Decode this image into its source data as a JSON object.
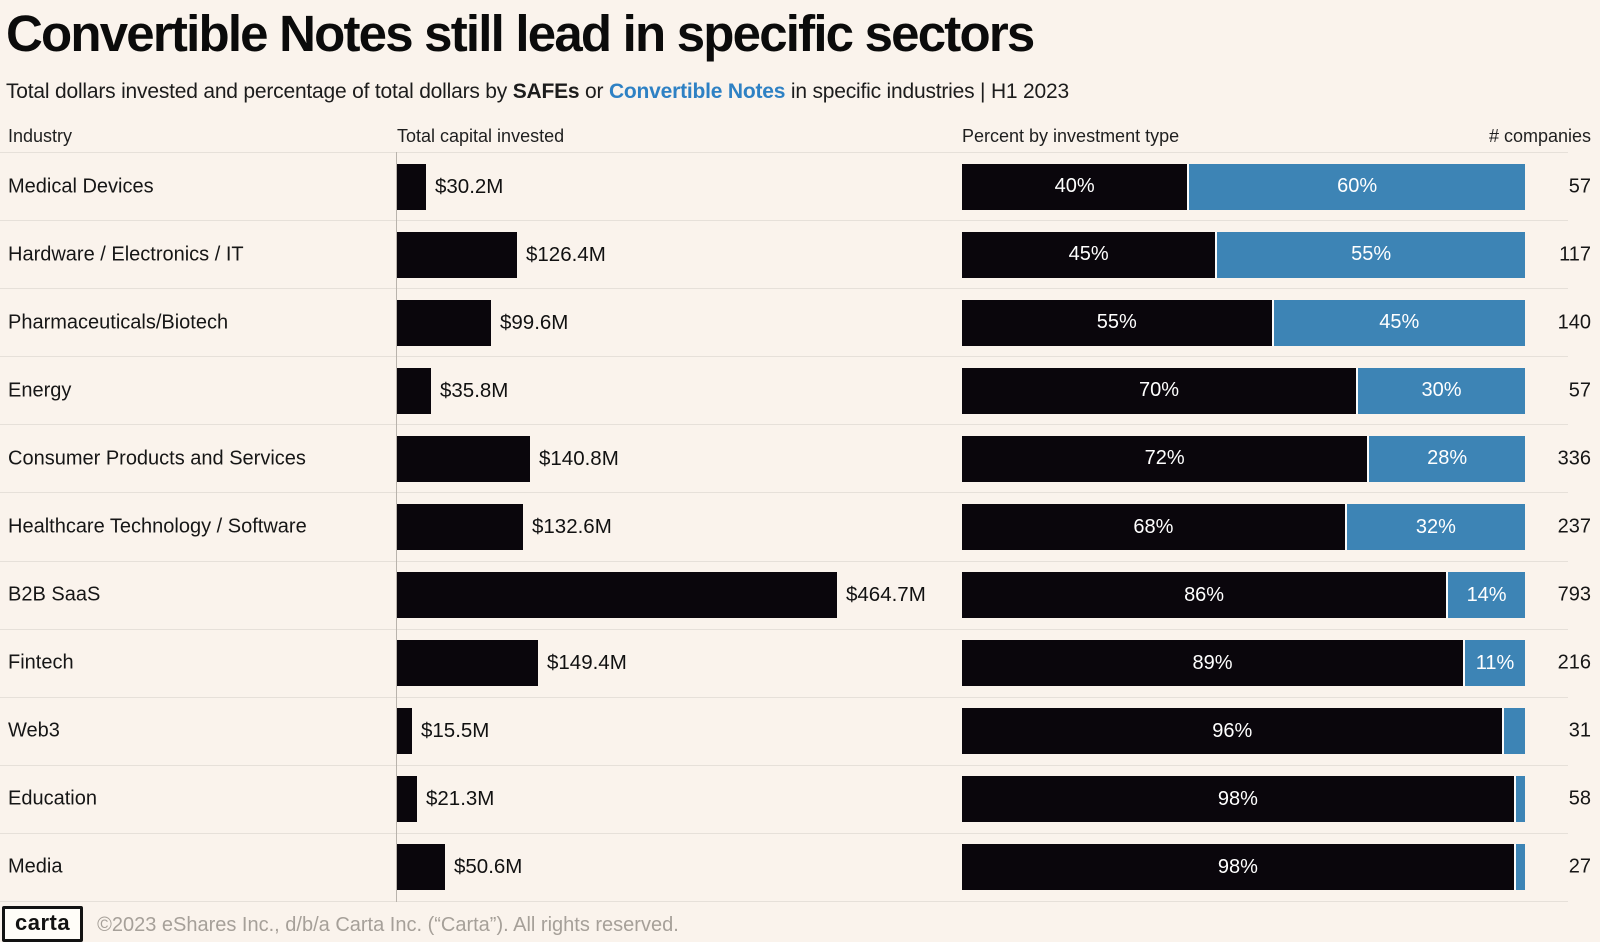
{
  "chart_data": {
    "type": "bar",
    "title": "Convertible Notes still lead in specific sectors",
    "subtitle": {
      "prefix": "Total dollars invested and percentage of total dollars by ",
      "safes": "SAFEs",
      "middle": " or ",
      "convertible": "Convertible Notes",
      "suffix": " in specific industries",
      "separator": "  |  ",
      "period": "H1 2023"
    },
    "columns": {
      "industry": "Industry",
      "capital": "Total capital invested",
      "percent": "Percent by investment type",
      "companies": "# companies"
    },
    "legend": [
      {
        "name": "SAFEs",
        "color": "#0a060c"
      },
      {
        "name": "Convertible Notes",
        "color": "#3d84b5"
      }
    ],
    "xlabel": "",
    "ylabel": "",
    "capital_axis_max_m": 464.7,
    "rows": [
      {
        "industry": "Medical Devices",
        "capital_label": "$30.2M",
        "capital_m": 30.2,
        "safe_pct": 40,
        "safe_label": "40%",
        "convertible_pct": 60,
        "convertible_label": "60%",
        "companies": "57"
      },
      {
        "industry": "Hardware / Electronics / IT",
        "capital_label": "$126.4M",
        "capital_m": 126.4,
        "safe_pct": 45,
        "safe_label": "45%",
        "convertible_pct": 55,
        "convertible_label": "55%",
        "companies": "117"
      },
      {
        "industry": "Pharmaceuticals/Biotech",
        "capital_label": "$99.6M",
        "capital_m": 99.6,
        "safe_pct": 55,
        "safe_label": "55%",
        "convertible_pct": 45,
        "convertible_label": "45%",
        "companies": "140"
      },
      {
        "industry": "Energy",
        "capital_label": "$35.8M",
        "capital_m": 35.8,
        "safe_pct": 70,
        "safe_label": "70%",
        "convertible_pct": 30,
        "convertible_label": "30%",
        "companies": "57"
      },
      {
        "industry": "Consumer Products and Services",
        "capital_label": "$140.8M",
        "capital_m": 140.8,
        "safe_pct": 72,
        "safe_label": "72%",
        "convertible_pct": 28,
        "convertible_label": "28%",
        "companies": "336"
      },
      {
        "industry": "Healthcare Technology / Software",
        "capital_label": "$132.6M",
        "capital_m": 132.6,
        "safe_pct": 68,
        "safe_label": "68%",
        "convertible_pct": 32,
        "convertible_label": "32%",
        "companies": "237"
      },
      {
        "industry": "B2B SaaS",
        "capital_label": "$464.7M",
        "capital_m": 464.7,
        "safe_pct": 86,
        "safe_label": "86%",
        "convertible_pct": 14,
        "convertible_label": "14%",
        "companies": "793"
      },
      {
        "industry": "Fintech",
        "capital_label": "$149.4M",
        "capital_m": 149.4,
        "safe_pct": 89,
        "safe_label": "89%",
        "convertible_pct": 11,
        "convertible_label": "11%",
        "companies": "216"
      },
      {
        "industry": "Web3",
        "capital_label": "$15.5M",
        "capital_m": 15.5,
        "safe_pct": 96,
        "safe_label": "96%",
        "convertible_pct": 4,
        "convertible_label": "",
        "companies": "31"
      },
      {
        "industry": "Education",
        "capital_label": "$21.3M",
        "capital_m": 21.3,
        "safe_pct": 98,
        "safe_label": "98%",
        "convertible_pct": 2,
        "convertible_label": "",
        "companies": "58"
      },
      {
        "industry": "Media",
        "capital_label": "$50.6M",
        "capital_m": 50.6,
        "safe_pct": 98,
        "safe_label": "98%",
        "convertible_pct": 2,
        "convertible_label": "",
        "companies": "27"
      }
    ]
  },
  "colors": {
    "background": "#faf3ec",
    "safe_bar": "#0a060c",
    "convertible_bar": "#3d84b5",
    "subtitle_accent": "#2e81c4"
  },
  "footer": {
    "logo": "carta",
    "copyright": "©2023 eShares Inc., d/b/a Carta Inc. (“Carta”). All rights reserved."
  }
}
